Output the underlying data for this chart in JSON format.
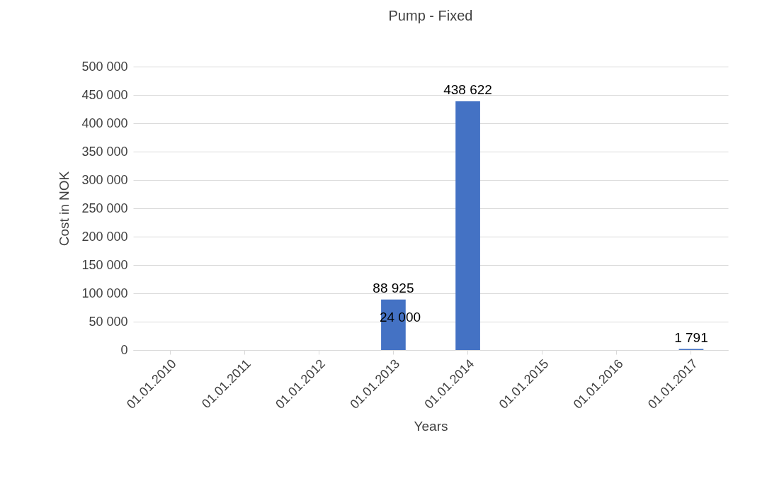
{
  "chart_data": {
    "type": "bar",
    "title": "Pump - Fixed",
    "xlabel": "Years",
    "ylabel": "Cost in NOK",
    "categories": [
      "01.01.2010",
      "01.01.2011",
      "01.01.2012",
      "01.01.2013",
      "01.01.2014",
      "01.01.2015",
      "01.01.2016",
      "01.01.2017"
    ],
    "values": [
      0,
      0,
      0,
      88925,
      438622,
      0,
      0,
      1791
    ],
    "value_labels": [
      null,
      null,
      null,
      "88 925",
      "438 622",
      null,
      null,
      "1 791"
    ],
    "color": "#4472c4",
    "ylim": [
      0,
      500000
    ],
    "yticks": [
      {
        "value": 0,
        "label": "0"
      },
      {
        "value": 50000,
        "label": "50 000"
      },
      {
        "value": 100000,
        "label": "100 000"
      },
      {
        "value": 150000,
        "label": "150 000"
      },
      {
        "value": 200000,
        "label": "200 000"
      },
      {
        "value": 250000,
        "label": "250 000"
      },
      {
        "value": 300000,
        "label": "300 000"
      },
      {
        "value": 350000,
        "label": "350 000"
      },
      {
        "value": 400000,
        "label": "400 000"
      },
      {
        "value": 450000,
        "label": "450 000"
      },
      {
        "value": 500000,
        "label": "500 000"
      }
    ],
    "annotations": [
      "24 000"
    ],
    "grid": "y"
  }
}
